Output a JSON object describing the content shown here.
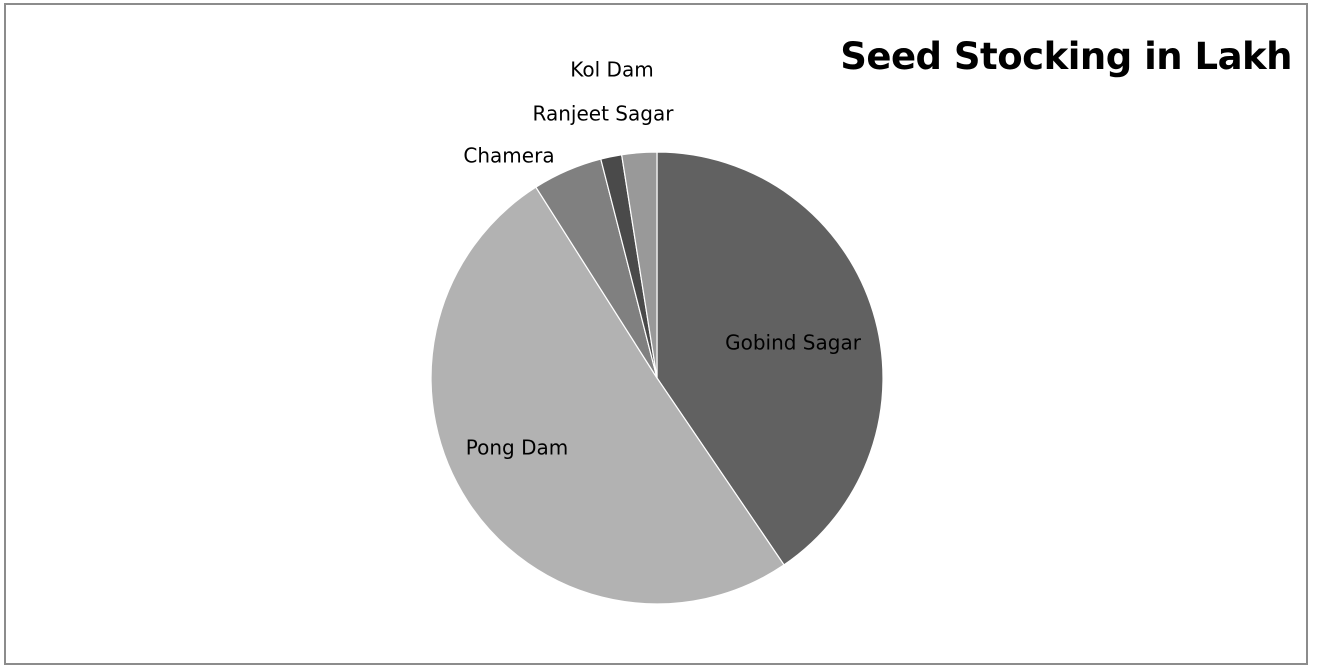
{
  "chart_data": {
    "type": "pie",
    "title": "Seed Stocking in Lakh",
    "start_angle_deg": 0,
    "direction": "clockwise",
    "slices": [
      {
        "label": "Gobind Sagar",
        "value": 40.5,
        "color": "#616161"
      },
      {
        "label": "Pong Dam",
        "value": 50.5,
        "color": "#b2b2b2"
      },
      {
        "label": "Chamera",
        "value": 5.0,
        "color": "#808080"
      },
      {
        "label": "Ranjeet Sagar",
        "value": 1.5,
        "color": "#4a4a4a"
      },
      {
        "label": "Kol Dam",
        "value": 2.5,
        "color": "#999999"
      }
    ],
    "legend": "none",
    "data_labels": "category-name"
  }
}
